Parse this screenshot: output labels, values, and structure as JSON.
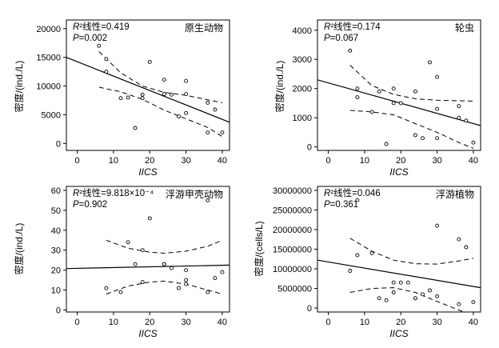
{
  "chart_data": [
    {
      "type": "scatter",
      "title": "原生动物",
      "xlabel": "IICS",
      "ylabel": "密度/(ind./L)",
      "r2_label": "²线性=0.419",
      "p_label": "=0.002",
      "xlim": [
        -3,
        42
      ],
      "ylim": [
        -1200,
        21500
      ],
      "xticks": [
        "0",
        "10",
        "20",
        "30",
        "40"
      ],
      "yticks": [
        "0",
        "5000",
        "10000",
        "15000",
        "20000"
      ],
      "points": [
        [
          6,
          17000
        ],
        [
          8,
          14700
        ],
        [
          8,
          12500
        ],
        [
          12,
          7900
        ],
        [
          14,
          8000
        ],
        [
          16,
          2700
        ],
        [
          18,
          8500
        ],
        [
          18,
          7900
        ],
        [
          20,
          14200
        ],
        [
          24,
          11100
        ],
        [
          24,
          8600
        ],
        [
          26,
          8500
        ],
        [
          28,
          4700
        ],
        [
          30,
          10900
        ],
        [
          30,
          8600
        ],
        [
          30,
          5300
        ],
        [
          36,
          7100
        ],
        [
          36,
          1900
        ],
        [
          38,
          5900
        ],
        [
          40,
          1900
        ]
      ],
      "fit": [
        [
          -3,
          15000
        ],
        [
          42,
          3700
        ]
      ],
      "ci_upper": [
        [
          6,
          16000
        ],
        [
          12,
          12300
        ],
        [
          18,
          10000
        ],
        [
          24,
          8900
        ],
        [
          30,
          8400
        ],
        [
          36,
          7600
        ],
        [
          40,
          7100
        ]
      ],
      "ci_lower": [
        [
          6,
          9800
        ],
        [
          12,
          9000
        ],
        [
          18,
          7700
        ],
        [
          24,
          5800
        ],
        [
          30,
          4300
        ],
        [
          36,
          2800
        ],
        [
          40,
          1200
        ]
      ]
    },
    {
      "type": "scatter",
      "title": "轮虫",
      "xlabel": "IICS",
      "ylabel": "密度/(ind./L)",
      "r2_label": "²线性=0.174",
      "p_label": "=0.067",
      "xlim": [
        -3,
        42
      ],
      "ylim": [
        -120,
        4350
      ],
      "xticks": [
        "0",
        "10",
        "20",
        "30",
        "40"
      ],
      "yticks": [
        "0",
        "1000",
        "2000",
        "3000",
        "4000"
      ],
      "points": [
        [
          6,
          3300
        ],
        [
          8,
          2000
        ],
        [
          8,
          1700
        ],
        [
          12,
          1200
        ],
        [
          14,
          1900
        ],
        [
          16,
          100
        ],
        [
          18,
          2000
        ],
        [
          18,
          1500
        ],
        [
          20,
          1500
        ],
        [
          24,
          1900
        ],
        [
          24,
          400
        ],
        [
          26,
          300
        ],
        [
          28,
          2900
        ],
        [
          30,
          2400
        ],
        [
          30,
          1300
        ],
        [
          30,
          300
        ],
        [
          36,
          1400
        ],
        [
          36,
          1000
        ],
        [
          38,
          900
        ],
        [
          40,
          150
        ]
      ],
      "fit": [
        [
          -3,
          2300
        ],
        [
          42,
          730
        ]
      ],
      "ci_upper": [
        [
          6,
          2800
        ],
        [
          12,
          2100
        ],
        [
          18,
          1800
        ],
        [
          24,
          1650
        ],
        [
          30,
          1600
        ],
        [
          36,
          1580
        ],
        [
          40,
          1570
        ]
      ],
      "ci_lower": [
        [
          6,
          1250
        ],
        [
          12,
          1200
        ],
        [
          18,
          1100
        ],
        [
          24,
          800
        ],
        [
          30,
          500
        ],
        [
          36,
          150
        ],
        [
          40,
          -50
        ]
      ]
    },
    {
      "type": "scatter",
      "title": "浮游甲壳动物",
      "xlabel": "IICS",
      "ylabel": "密度/(ind./L)",
      "r2_label": "²线性=9.818×10⁻⁴",
      "p_label": "=0.902",
      "xlim": [
        -3,
        42
      ],
      "ylim": [
        -1,
        62
      ],
      "xticks": [
        "0",
        "10",
        "20",
        "30",
        "40"
      ],
      "yticks": [
        "0",
        "10",
        "20",
        "30",
        "40",
        "50",
        "60"
      ],
      "points": [
        [
          8,
          11
        ],
        [
          12,
          9
        ],
        [
          14,
          34
        ],
        [
          16,
          23
        ],
        [
          18,
          30
        ],
        [
          18,
          14
        ],
        [
          20,
          46
        ],
        [
          24,
          23
        ],
        [
          24,
          23
        ],
        [
          26,
          21
        ],
        [
          28,
          11
        ],
        [
          30,
          20
        ],
        [
          30,
          13
        ],
        [
          30,
          15
        ],
        [
          36,
          55
        ],
        [
          36,
          9
        ],
        [
          38,
          16
        ],
        [
          40,
          19
        ]
      ],
      "fit": [
        [
          -3,
          20.8
        ],
        [
          42,
          22.5
        ]
      ],
      "ci_upper": [
        [
          8,
          35
        ],
        [
          14,
          31
        ],
        [
          20,
          29
        ],
        [
          24,
          28.5
        ],
        [
          30,
          29.5
        ],
        [
          36,
          32
        ],
        [
          40,
          35
        ]
      ],
      "ci_lower": [
        [
          8,
          8
        ],
        [
          14,
          12
        ],
        [
          20,
          14
        ],
        [
          24,
          14.5
        ],
        [
          30,
          13
        ],
        [
          36,
          10
        ],
        [
          40,
          8
        ]
      ]
    },
    {
      "type": "scatter",
      "title": "浮游植物",
      "xlabel": "IICS",
      "ylabel": "密度/(cells/L)",
      "r2_label": "²线性=0.046",
      "p_label": "=0.361",
      "xlim": [
        -3,
        42
      ],
      "ylim": [
        -1000000,
        31000000
      ],
      "xticks": [
        "0",
        "10",
        "20",
        "30",
        "40"
      ],
      "yticks": [
        "0",
        "5000000",
        "10000000",
        "15000000",
        "20000000",
        "25000000",
        "30000000"
      ],
      "points": [
        [
          6,
          9500000
        ],
        [
          8,
          27500000
        ],
        [
          8,
          13500000
        ],
        [
          12,
          14000000
        ],
        [
          14,
          2500000
        ],
        [
          16,
          2000000
        ],
        [
          18,
          4000000
        ],
        [
          18,
          6500000
        ],
        [
          20,
          6500000
        ],
        [
          22,
          6500000
        ],
        [
          24,
          2500000
        ],
        [
          24,
          2500000
        ],
        [
          26,
          3500000
        ],
        [
          28,
          4500000
        ],
        [
          30,
          21000000
        ],
        [
          30,
          3000000
        ],
        [
          36,
          17500000
        ],
        [
          36,
          1000000
        ],
        [
          38,
          15500000
        ],
        [
          40,
          1500000
        ]
      ],
      "fit": [
        [
          -3,
          12200000
        ],
        [
          42,
          5200000
        ]
      ],
      "ci_upper": [
        [
          6,
          17800000
        ],
        [
          12,
          14500000
        ],
        [
          18,
          12200000
        ],
        [
          24,
          11300000
        ],
        [
          30,
          11200000
        ],
        [
          36,
          12000000
        ],
        [
          40,
          12700000
        ]
      ],
      "ci_lower": [
        [
          6,
          4000000
        ],
        [
          12,
          5000000
        ],
        [
          18,
          5200000
        ],
        [
          24,
          4000000
        ],
        [
          30,
          1700000
        ],
        [
          36,
          -500000
        ],
        [
          40,
          -2000000
        ]
      ]
    }
  ]
}
